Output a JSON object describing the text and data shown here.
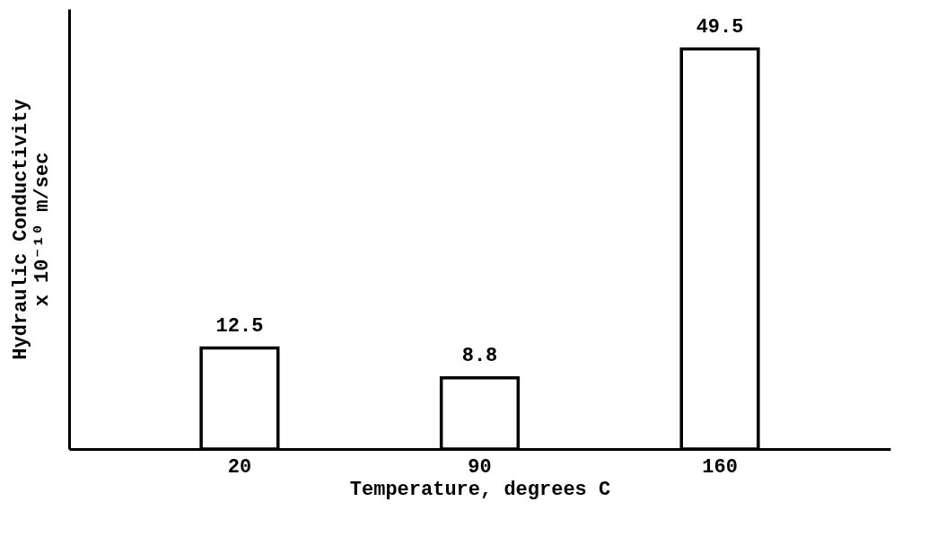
{
  "chart_data": {
    "type": "bar",
    "xlabel": "Temperature, degrees C",
    "ylabel": "Hydraulic Conductivity\nx 10⁻¹⁰ m/sec",
    "categories": [
      "20",
      "90",
      "160"
    ],
    "values": [
      12.5,
      8.8,
      49.5
    ],
    "color": "#ffffff",
    "data_labels": true
  }
}
